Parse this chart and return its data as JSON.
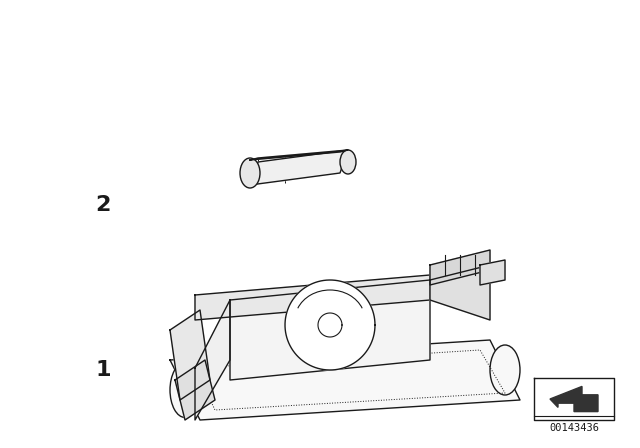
{
  "background_color": "#ffffff",
  "line_color": "#1a1a1a",
  "label_1": "1",
  "label_2": "2",
  "part_number": "00143436",
  "figsize": [
    6.4,
    4.48
  ],
  "dpi": 100
}
